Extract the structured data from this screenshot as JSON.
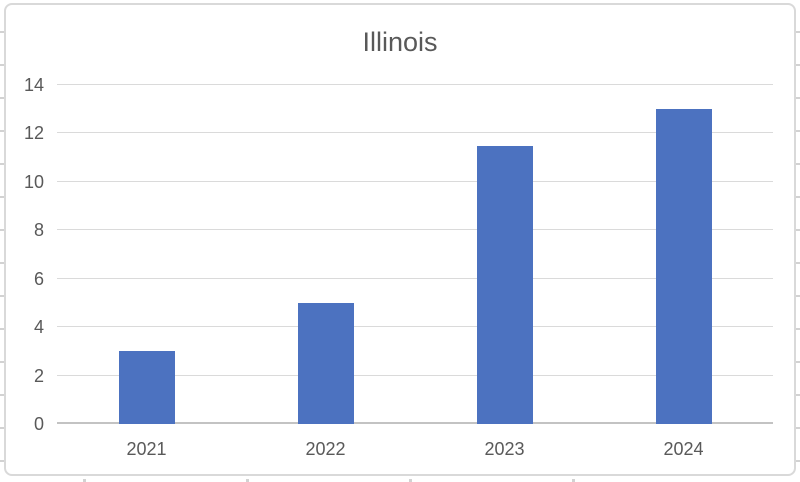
{
  "chart_data": {
    "type": "bar",
    "title": "Illinois",
    "categories": [
      "2021",
      "2022",
      "2023",
      "2024"
    ],
    "values": [
      3,
      5,
      11.5,
      13
    ],
    "ylim": [
      0,
      14
    ],
    "yticks": [
      0,
      2,
      4,
      6,
      8,
      10,
      12,
      14
    ],
    "grid": true,
    "legend": false,
    "colors": {
      "bar": "#4c72c0",
      "gridline": "#dadada",
      "axis_line": "#c3c3c3",
      "text": "#595959",
      "frame_border": "#d9d9d9",
      "canvas_bg": "#ffffff",
      "stub": "#d2d2d2"
    }
  }
}
